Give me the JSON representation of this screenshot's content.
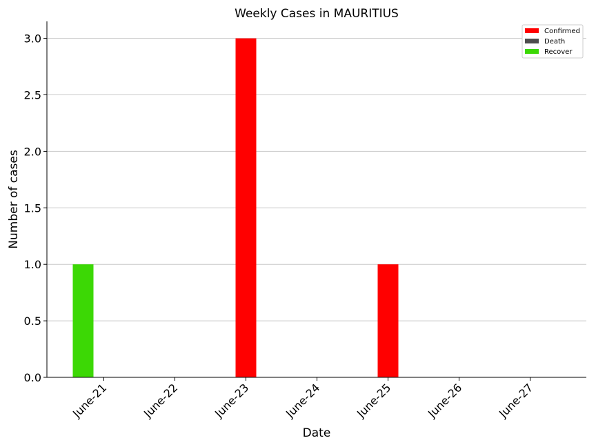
{
  "chart_data": {
    "type": "bar",
    "title": "Weekly Cases in MAURITIUS",
    "xlabel": "Date",
    "ylabel": "Number of cases",
    "categories": [
      "June-21",
      "June-22",
      "June-23",
      "June-24",
      "June-25",
      "June-26",
      "June-27"
    ],
    "series": [
      {
        "name": "Confirmed",
        "color": "#ff0000",
        "values": [
          0,
          0,
          3,
          0,
          1,
          0,
          0
        ]
      },
      {
        "name": "Death",
        "color": "#4d4d4d",
        "values": [
          0,
          0,
          0,
          0,
          0,
          0,
          0
        ]
      },
      {
        "name": "Recover",
        "color": "#3cd805",
        "values": [
          1,
          0,
          0,
          0,
          0,
          0,
          0
        ]
      }
    ],
    "ylim": [
      0,
      3.15
    ],
    "yticks": [
      "0.0",
      "0.5",
      "1.0",
      "1.5",
      "2.0",
      "2.5",
      "3.0"
    ],
    "grid": "y",
    "legend": "top-right"
  }
}
